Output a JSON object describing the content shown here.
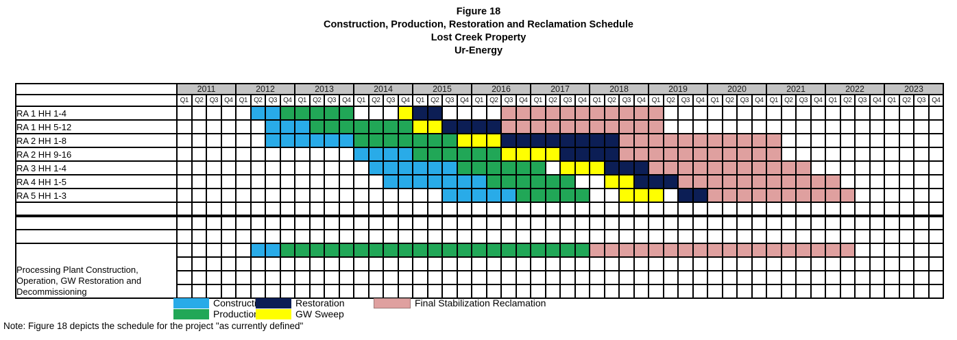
{
  "title": {
    "lines": [
      "Figure 18",
      "Construction, Production, Restoration and Reclamation Schedule",
      "Lost Creek Property",
      "Ur-Energy"
    ]
  },
  "note": "Note: Figure 18 depicts the schedule for the project \"as currently defined\"",
  "legend": {
    "row1": [
      {
        "phase": "construction",
        "label": "Construction"
      },
      {
        "phase": "restoration",
        "label": "Restoration"
      },
      {
        "phase": "reclamation",
        "label": "Final Stabilization Reclamation"
      }
    ],
    "row2": [
      {
        "phase": "production",
        "label": "Production"
      },
      {
        "phase": "gw_sweep",
        "label": "GW Sweep"
      }
    ]
  },
  "chart_data": {
    "type": "gantt",
    "title": "Figure 18 - Construction, Production, Restoration and Reclamation Schedule, Lost Creek Property, Ur-Energy",
    "x_axis": "Calendar quarters 2011-2023",
    "years": [
      2011,
      2012,
      2013,
      2014,
      2015,
      2016,
      2017,
      2018,
      2019,
      2020,
      2021,
      2022,
      2023
    ],
    "quarters": [
      "Q1",
      "Q2",
      "Q3",
      "Q4"
    ],
    "quarter_index_note": "segment from/to are inclusive quarter indices, 0 = 2011 Q1 ... 51 = 2023 Q4",
    "phases": {
      "construction": "Construction",
      "production": "Production",
      "restoration": "Restoration",
      "gw_sweep": "GW Sweep",
      "reclamation": "Final Stabilization Reclamation"
    },
    "phase_colors": {
      "construction": "#29ABE8",
      "production": "#21A757",
      "restoration": "#0C1E55",
      "gw_sweep": "#FFFF00",
      "reclamation": "#DFA09F"
    },
    "header_bg": "#C3C3C3",
    "grid_color": "#000000",
    "rows": [
      {
        "label": "RA 1 HH 1-4",
        "segments": [
          {
            "phase": "construction",
            "from": 5,
            "to": 6
          },
          {
            "phase": "production",
            "from": 7,
            "to": 11
          },
          {
            "phase": "gw_sweep",
            "from": 15,
            "to": 15
          },
          {
            "phase": "restoration",
            "from": 16,
            "to": 17
          },
          {
            "phase": "reclamation",
            "from": 22,
            "to": 32
          }
        ]
      },
      {
        "label": "RA 1 HH 5-12",
        "segments": [
          {
            "phase": "construction",
            "from": 6,
            "to": 8
          },
          {
            "phase": "production",
            "from": 9,
            "to": 15
          },
          {
            "phase": "gw_sweep",
            "from": 16,
            "to": 17
          },
          {
            "phase": "restoration",
            "from": 18,
            "to": 21
          },
          {
            "phase": "reclamation",
            "from": 22,
            "to": 32
          }
        ]
      },
      {
        "label": "RA 2 HH 1-8",
        "segments": [
          {
            "phase": "construction",
            "from": 6,
            "to": 11
          },
          {
            "phase": "production",
            "from": 12,
            "to": 18
          },
          {
            "phase": "gw_sweep",
            "from": 19,
            "to": 21
          },
          {
            "phase": "restoration",
            "from": 22,
            "to": 29
          },
          {
            "phase": "reclamation",
            "from": 30,
            "to": 40
          }
        ]
      },
      {
        "label": "RA 2 HH 9-16",
        "segments": [
          {
            "phase": "construction",
            "from": 12,
            "to": 15
          },
          {
            "phase": "production",
            "from": 16,
            "to": 21
          },
          {
            "phase": "gw_sweep",
            "from": 22,
            "to": 25
          },
          {
            "phase": "restoration",
            "from": 26,
            "to": 29
          },
          {
            "phase": "reclamation",
            "from": 30,
            "to": 40
          }
        ]
      },
      {
        "label": "RA 3 HH 1-4",
        "segments": [
          {
            "phase": "construction",
            "from": 13,
            "to": 18
          },
          {
            "phase": "production",
            "from": 19,
            "to": 24
          },
          {
            "phase": "gw_sweep",
            "from": 26,
            "to": 28
          },
          {
            "phase": "restoration",
            "from": 29,
            "to": 31
          },
          {
            "phase": "reclamation",
            "from": 32,
            "to": 42
          }
        ]
      },
      {
        "label": "RA 4 HH 1-5",
        "segments": [
          {
            "phase": "construction",
            "from": 14,
            "to": 20
          },
          {
            "phase": "production",
            "from": 21,
            "to": 26
          },
          {
            "phase": "gw_sweep",
            "from": 29,
            "to": 30
          },
          {
            "phase": "restoration",
            "from": 31,
            "to": 33
          },
          {
            "phase": "reclamation",
            "from": 34,
            "to": 44
          }
        ]
      },
      {
        "label": "RA 5 HH 1-3",
        "segments": [
          {
            "phase": "construction",
            "from": 18,
            "to": 22
          },
          {
            "phase": "production",
            "from": 23,
            "to": 27
          },
          {
            "phase": "gw_sweep",
            "from": 30,
            "to": 32
          },
          {
            "phase": "restoration",
            "from": 34,
            "to": 35
          },
          {
            "phase": "reclamation",
            "from": 36,
            "to": 45
          }
        ]
      },
      {
        "label": "",
        "thick_border_below": true,
        "segments": []
      },
      {
        "label": "",
        "segments": []
      },
      {
        "label": "",
        "segments": []
      },
      {
        "label_lines": [
          "Processing Plant Construction,",
          "Operation, GW Restoration and",
          "Decommissioning"
        ],
        "label_rowspan": 4,
        "segments": [
          {
            "phase": "construction",
            "from": 5,
            "to": 6
          },
          {
            "phase": "production",
            "from": 7,
            "to": 27
          },
          {
            "phase": "reclamation",
            "from": 28,
            "to": 45
          }
        ]
      },
      {
        "label": null,
        "segments": []
      },
      {
        "label": null,
        "segments": []
      },
      {
        "label": null,
        "segments": []
      }
    ]
  }
}
